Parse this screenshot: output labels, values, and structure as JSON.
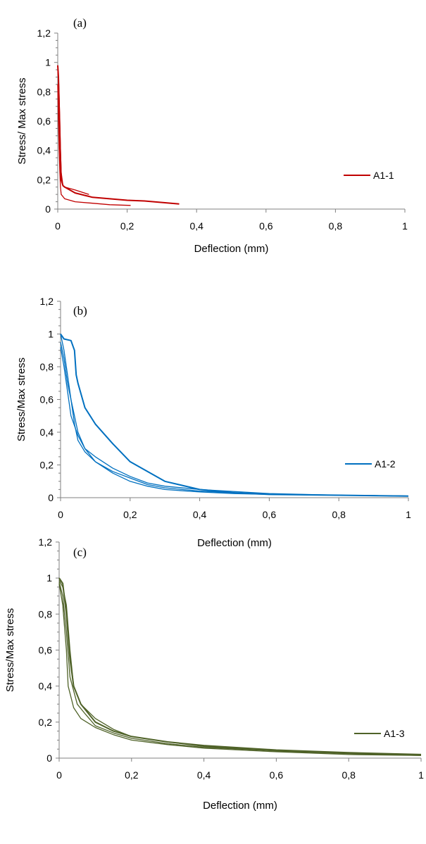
{
  "chart_data": [
    {
      "type": "line",
      "panel_label": "(a)",
      "xlabel": "Deflection (mm)",
      "ylabel": "Stress/ Max stress",
      "xlim": [
        0,
        1
      ],
      "ylim": [
        0,
        1.2
      ],
      "x_ticks": [
        "0",
        "0,2",
        "0,4",
        "0,6",
        "0,8",
        "1"
      ],
      "y_ticks": [
        "0",
        "0,2",
        "0,4",
        "0,6",
        "0,8",
        "1",
        "1,2"
      ],
      "grid": false,
      "legend_position": "right",
      "color": "#c00000",
      "series": [
        {
          "name": "A1-1",
          "x": [
            0,
            0.002,
            0.004,
            0.006,
            0.008,
            0.01,
            0.015,
            0.02,
            0.05,
            0.1,
            0.15,
            0.2,
            0.25,
            0.3,
            0.35
          ],
          "y": [
            0.98,
            0.9,
            0.7,
            0.5,
            0.35,
            0.2,
            0.16,
            0.15,
            0.11,
            0.08,
            0.07,
            0.06,
            0.055,
            0.045,
            0.035
          ]
        },
        {
          "name": "",
          "x": [
            0,
            0.003,
            0.006,
            0.008,
            0.01,
            0.015,
            0.02,
            0.05,
            0.09
          ],
          "y": [
            0.95,
            0.85,
            0.6,
            0.4,
            0.25,
            0.16,
            0.15,
            0.13,
            0.1
          ]
        },
        {
          "name": "",
          "x": [
            0,
            0.002,
            0.004,
            0.006,
            0.008,
            0.01,
            0.02,
            0.05,
            0.1,
            0.15,
            0.21
          ],
          "y": [
            0.85,
            0.6,
            0.4,
            0.25,
            0.15,
            0.1,
            0.07,
            0.05,
            0.04,
            0.03,
            0.025
          ]
        }
      ]
    },
    {
      "type": "line",
      "panel_label": "(b)",
      "xlabel": "Deflection (mm)",
      "ylabel": "Stress/Max stress",
      "xlim": [
        0,
        1
      ],
      "ylim": [
        0,
        1.2
      ],
      "x_ticks": [
        "0",
        "0,2",
        "0,4",
        "0,6",
        "0,8",
        "1"
      ],
      "y_ticks": [
        "0",
        "0,2",
        "0,4",
        "0,6",
        "0,8",
        "1",
        "1,2"
      ],
      "grid": false,
      "legend_position": "right",
      "color": "#0070c0",
      "series": [
        {
          "name": "A1-2",
          "x": [
            0,
            0.01,
            0.03,
            0.04,
            0.045,
            0.05,
            0.07,
            0.1,
            0.15,
            0.2,
            0.3,
            0.4,
            0.5,
            0.6,
            0.8,
            1.0
          ],
          "y": [
            1.0,
            0.97,
            0.96,
            0.9,
            0.75,
            0.7,
            0.55,
            0.45,
            0.33,
            0.22,
            0.1,
            0.05,
            0.03,
            0.02,
            0.015,
            0.01
          ]
        },
        {
          "name": "",
          "x": [
            0,
            0.01,
            0.02,
            0.03,
            0.04,
            0.05,
            0.07,
            0.1,
            0.15,
            0.2,
            0.25,
            0.3,
            0.4,
            0.5,
            0.6,
            0.8,
            1.0
          ],
          "y": [
            1.0,
            0.9,
            0.75,
            0.6,
            0.45,
            0.35,
            0.28,
            0.22,
            0.15,
            0.1,
            0.07,
            0.05,
            0.035,
            0.025,
            0.02,
            0.015,
            0.01
          ]
        },
        {
          "name": "",
          "x": [
            0,
            0.01,
            0.02,
            0.03,
            0.05,
            0.07,
            0.1,
            0.15,
            0.2,
            0.25,
            0.3,
            0.4,
            0.6,
            0.8,
            1.0
          ],
          "y": [
            0.95,
            0.85,
            0.7,
            0.6,
            0.4,
            0.3,
            0.25,
            0.18,
            0.13,
            0.09,
            0.07,
            0.05,
            0.025,
            0.015,
            0.01
          ]
        },
        {
          "name": "",
          "x": [
            0,
            0.01,
            0.02,
            0.03,
            0.05,
            0.07,
            0.1,
            0.15,
            0.2,
            0.25,
            0.3,
            0.4,
            0.6,
            0.8,
            1.0
          ],
          "y": [
            0.92,
            0.8,
            0.65,
            0.5,
            0.38,
            0.3,
            0.22,
            0.16,
            0.12,
            0.08,
            0.06,
            0.04,
            0.02,
            0.015,
            0.01
          ]
        }
      ]
    },
    {
      "type": "line",
      "panel_label": "(c)",
      "xlabel": "Deflection (mm)",
      "ylabel": "Stress/Max stress",
      "xlim": [
        0,
        1
      ],
      "ylim": [
        0,
        1.2
      ],
      "x_ticks": [
        "0",
        "0,2",
        "0,4",
        "0,6",
        "0,8",
        "1"
      ],
      "y_ticks": [
        "0",
        "0,2",
        "0,4",
        "0,6",
        "0,8",
        "1",
        "1,2"
      ],
      "grid": false,
      "legend_position": "right",
      "color": "#4f6228",
      "series": [
        {
          "name": "A1-3",
          "x": [
            0,
            0.01,
            0.02,
            0.03,
            0.04,
            0.06,
            0.1,
            0.15,
            0.2,
            0.3,
            0.4,
            0.6,
            0.8,
            1.0
          ],
          "y": [
            1.0,
            0.97,
            0.8,
            0.55,
            0.4,
            0.3,
            0.2,
            0.15,
            0.12,
            0.09,
            0.07,
            0.045,
            0.03,
            0.02
          ]
        },
        {
          "name": "",
          "x": [
            0,
            0.01,
            0.02,
            0.03,
            0.05,
            0.07,
            0.1,
            0.15,
            0.2,
            0.3,
            0.4,
            0.6,
            0.8,
            1.0
          ],
          "y": [
            0.98,
            0.9,
            0.7,
            0.45,
            0.3,
            0.25,
            0.18,
            0.14,
            0.11,
            0.08,
            0.06,
            0.04,
            0.025,
            0.02
          ]
        },
        {
          "name": "",
          "x": [
            0,
            0.01,
            0.02,
            0.03,
            0.04,
            0.06,
            0.1,
            0.15,
            0.2,
            0.3,
            0.4,
            0.6,
            0.8,
            1.0
          ],
          "y": [
            0.99,
            0.95,
            0.85,
            0.6,
            0.4,
            0.3,
            0.22,
            0.16,
            0.12,
            0.09,
            0.065,
            0.04,
            0.025,
            0.015
          ]
        },
        {
          "name": "",
          "x": [
            0,
            0.01,
            0.02,
            0.025,
            0.04,
            0.06,
            0.1,
            0.15,
            0.2,
            0.3,
            0.4,
            0.6,
            0.8,
            1.0
          ],
          "y": [
            0.97,
            0.85,
            0.6,
            0.4,
            0.28,
            0.22,
            0.17,
            0.13,
            0.1,
            0.075,
            0.055,
            0.035,
            0.02,
            0.015
          ]
        }
      ]
    }
  ]
}
